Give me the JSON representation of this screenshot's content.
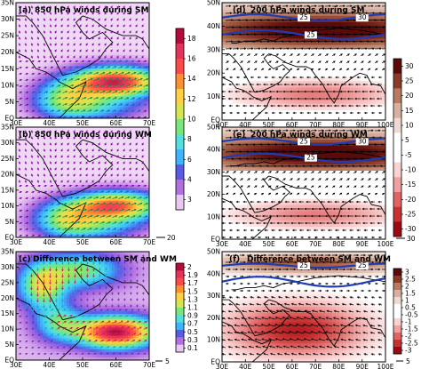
{
  "chart_data": [
    {
      "type": "heatmap",
      "panel_label": "(a)",
      "title": "850 hPa winds during SM",
      "x_ticks": [
        "30E",
        "40E",
        "50E",
        "60E",
        "70E"
      ],
      "y_ticks": [
        "EQ",
        "5N",
        "10N",
        "15N",
        "20N",
        "25N",
        "30N",
        "35N"
      ],
      "xlim": [
        30,
        70
      ],
      "ylim": [
        0,
        35
      ],
      "field": "wind speed (shaded) with wind vectors",
      "jet_core": {
        "lon": 60,
        "lat": 11,
        "max_speed": 18
      },
      "colorbar": {
        "ticks": [
          "3",
          "4",
          "6",
          "8",
          "10",
          "12",
          "14",
          "16",
          "18"
        ],
        "shared_with": "(b)"
      }
    },
    {
      "type": "heatmap",
      "panel_label": "(b)",
      "title": "850 hPa winds during WM",
      "x_ticks": [
        "30E",
        "40E",
        "50E",
        "60E",
        "70E"
      ],
      "y_ticks": [
        "EQ",
        "5N",
        "10N",
        "15N",
        "20N",
        "25N",
        "30N",
        "35N"
      ],
      "xlim": [
        30,
        70
      ],
      "ylim": [
        0,
        35
      ],
      "field": "wind speed (shaded) with wind vectors",
      "jet_core": {
        "lon": 60,
        "lat": 10,
        "max_speed": 16
      },
      "reference_vector": "20"
    },
    {
      "type": "heatmap",
      "panel_label": "(c)",
      "title": "Difference between SM and WM",
      "x_ticks": [
        "30E",
        "40E",
        "50E",
        "60E",
        "70E"
      ],
      "y_ticks": [
        "EQ",
        "5N",
        "10N",
        "15N",
        "20N",
        "25N",
        "30N",
        "35N"
      ],
      "xlim": [
        30,
        70
      ],
      "ylim": [
        0,
        35
      ],
      "field": "wind speed difference (shaded) with difference vectors",
      "colorbar": {
        "ticks": [
          "0.1",
          "0.3",
          "0.5",
          "0.7",
          "0.9",
          "1.1",
          "1.3",
          "1.5",
          "1.7",
          "1.9",
          "2"
        ]
      },
      "reference_vector": "5"
    },
    {
      "type": "heatmap",
      "panel_label": "(d)",
      "title": "200 hPa winds during SM",
      "x_ticks": [
        "30E",
        "40E",
        "50E",
        "60E",
        "70E",
        "80E",
        "90E",
        "100E"
      ],
      "y_ticks": [
        "EQ",
        "10N",
        "20N",
        "30N",
        "40N",
        "50N"
      ],
      "xlim": [
        30,
        100
      ],
      "ylim": [
        0,
        55
      ],
      "field": "zonal wind (shaded) with 25 and 30 m/s isotachs and vectors",
      "contour_labels": [
        "25",
        "30",
        "25"
      ],
      "colorbar": {
        "ticks": [
          "30",
          "25",
          "20",
          "15",
          "10",
          "5",
          "-5",
          "-10",
          "-15",
          "-20",
          "-25",
          "-30"
        ],
        "shared_with": "(e)"
      }
    },
    {
      "type": "heatmap",
      "panel_label": "(e)",
      "title": "200 hPa winds during WM",
      "x_ticks": [
        "30E",
        "40E",
        "50E",
        "60E",
        "70E",
        "80E",
        "90E",
        "100E"
      ],
      "y_ticks": [
        "EQ",
        "10N",
        "20N",
        "30N",
        "40N",
        "50N"
      ],
      "xlim": [
        30,
        100
      ],
      "ylim": [
        0,
        55
      ],
      "field": "zonal wind (shaded) with 25 and 30 m/s isotachs and vectors",
      "contour_labels": [
        "25",
        "30",
        "25"
      ],
      "reference_vector": "30"
    },
    {
      "type": "heatmap",
      "panel_label": "(f)",
      "title": "Difference between SM and WM",
      "x_ticks": [
        "30E",
        "40E",
        "50E",
        "60E",
        "70E",
        "80E",
        "90E",
        "100E"
      ],
      "y_ticks": [
        "EQ",
        "10N",
        "20N",
        "30N",
        "40N",
        "50N"
      ],
      "xlim": [
        30,
        100
      ],
      "ylim": [
        0,
        55
      ],
      "field": "zonal wind difference (shaded) with isotachs and vectors",
      "contour_labels": [
        "25",
        "25"
      ],
      "colorbar": {
        "ticks": [
          "3",
          "2.5",
          "2",
          "1.5",
          "1",
          "0.5",
          "-0.5",
          "-1",
          "-1.5",
          "-2",
          "-2.5",
          "-3"
        ]
      },
      "reference_vector": "5"
    }
  ],
  "colors": {
    "rainbow": [
      "#ffffff",
      "#e8c8f0",
      "#b070e0",
      "#5a5ae6",
      "#3cb4ff",
      "#50e0e0",
      "#78e678",
      "#d2e650",
      "#ffd040",
      "#ff9030",
      "#ff4848",
      "#e6325a",
      "#b40a3c"
    ],
    "diverging": [
      "#5a0a0a",
      "#8c3a28",
      "#b87a60",
      "#d8b0a0",
      "#eedad2",
      "#ffffff",
      "#ffffff",
      "#fad2d2",
      "#f0a0a0",
      "#e06464",
      "#c83232",
      "#9a0a14"
    ],
    "isotach": "#1e3cb4",
    "vector": "#000000",
    "vector_ab": "#8800aa",
    "coast": "#000000"
  }
}
